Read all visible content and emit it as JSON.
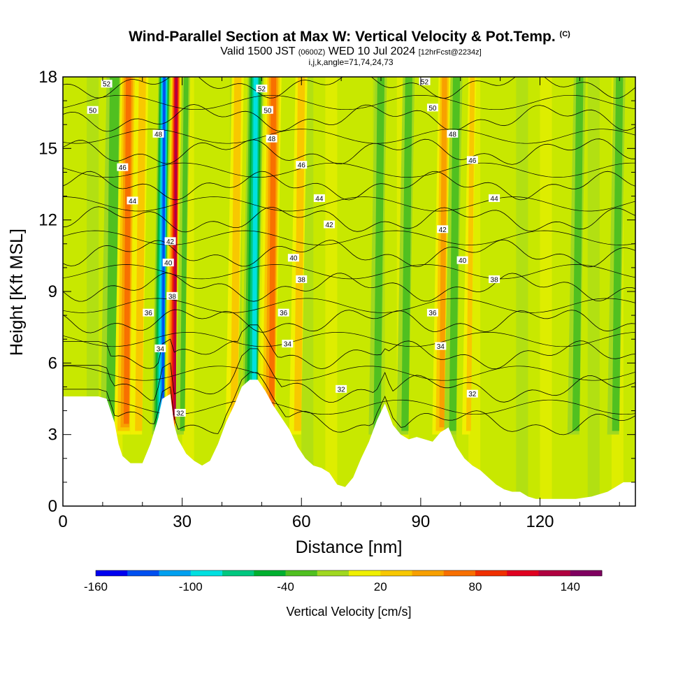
{
  "title": "Wind-Parallel Section at Max W: Vertical Velocity & Pot.Temp.",
  "title_mark": "(C)",
  "subtitle": {
    "valid_label": "Valid 1500 JST",
    "utc": "(0600Z)",
    "date": "WED 10 Jul 2024",
    "forecast": "[12hrFcst@2234z]"
  },
  "index_line": "i,j,k,angle=71,74,24,73",
  "chart_data": {
    "type": "heatmap",
    "xlabel": "Distance [nm]",
    "ylabel": "Height [Kft MSL]",
    "xlim": [
      0,
      144
    ],
    "ylim": [
      0,
      18
    ],
    "x_ticks": [
      0,
      30,
      60,
      90,
      120
    ],
    "y_ticks": [
      0,
      3,
      6,
      9,
      12,
      15,
      18
    ],
    "colorbar": {
      "label": "Vertical Velocity [cm/s]",
      "min": -160,
      "max": 160,
      "step": 20,
      "tick_labels": [
        "-160",
        "-100",
        "-40",
        "20",
        "80",
        "140"
      ],
      "tick_values": [
        -160,
        -100,
        -40,
        20,
        80,
        140
      ],
      "colors": [
        "#0000f0",
        "#0050f0",
        "#00a0f0",
        "#00e0e0",
        "#00c880",
        "#00b030",
        "#50c020",
        "#a0d820",
        "#c8e800",
        "#f0f000",
        "#f8c800",
        "#f8a000",
        "#f87000",
        "#f03000",
        "#e00020",
        "#b00040",
        "#800060"
      ]
    },
    "velocity_features": [
      {
        "x": 13,
        "width": 4,
        "w": -40
      },
      {
        "x": 16.5,
        "width": 4,
        "w": 90
      },
      {
        "x": 20,
        "width": 3,
        "w": 50
      },
      {
        "x": 25.5,
        "width": 3,
        "w": -150
      },
      {
        "x": 28.5,
        "width": 2.5,
        "w": 140
      },
      {
        "x": 31,
        "width": 2,
        "w": -40
      },
      {
        "x": 44,
        "width": 3,
        "w": 50
      },
      {
        "x": 48.5,
        "width": 4,
        "w": -110
      },
      {
        "x": 53,
        "width": 4,
        "w": 90
      },
      {
        "x": 60,
        "width": 3,
        "w": 40
      },
      {
        "x": 80,
        "width": 3,
        "w": -40
      },
      {
        "x": 87,
        "width": 3,
        "w": -40
      },
      {
        "x": 96,
        "width": 3,
        "w": 60
      },
      {
        "x": 99,
        "width": 3,
        "w": -40
      },
      {
        "x": 103,
        "width": 2,
        "w": 40
      },
      {
        "x": 130,
        "width": 3,
        "w": -40
      },
      {
        "x": 140,
        "width": 3,
        "w": -40
      }
    ],
    "terrain_kft": [
      [
        0,
        4.6
      ],
      [
        4,
        4.6
      ],
      [
        9,
        4.6
      ],
      [
        11,
        4.5
      ],
      [
        13,
        3.5
      ],
      [
        14,
        2.6
      ],
      [
        15,
        2.1
      ],
      [
        17,
        1.8
      ],
      [
        20,
        1.8
      ],
      [
        22,
        2.6
      ],
      [
        24,
        3.7
      ],
      [
        25,
        4.5
      ],
      [
        27,
        4.7
      ],
      [
        28,
        3.4
      ],
      [
        29,
        2.8
      ],
      [
        31,
        2.2
      ],
      [
        33,
        1.9
      ],
      [
        35,
        1.7
      ],
      [
        37,
        1.9
      ],
      [
        39,
        2.6
      ],
      [
        41,
        3.5
      ],
      [
        43,
        4.2
      ],
      [
        45,
        5.0
      ],
      [
        47,
        5.3
      ],
      [
        49,
        5.3
      ],
      [
        51,
        4.8
      ],
      [
        53,
        4.2
      ],
      [
        55,
        3.7
      ],
      [
        57,
        3.2
      ],
      [
        59,
        2.5
      ],
      [
        61,
        2.0
      ],
      [
        63,
        1.7
      ],
      [
        65,
        1.6
      ],
      [
        67,
        1.4
      ],
      [
        69,
        0.9
      ],
      [
        71,
        0.8
      ],
      [
        73,
        1.2
      ],
      [
        75,
        2.0
      ],
      [
        77,
        2.7
      ],
      [
        79,
        3.6
      ],
      [
        81,
        4.3
      ],
      [
        83,
        3.4
      ],
      [
        85,
        3.0
      ],
      [
        87,
        2.8
      ],
      [
        89,
        2.9
      ],
      [
        91,
        2.8
      ],
      [
        93,
        2.7
      ],
      [
        95,
        3.1
      ],
      [
        97,
        3.3
      ],
      [
        99,
        2.5
      ],
      [
        101,
        2.0
      ],
      [
        103,
        1.7
      ],
      [
        105,
        1.5
      ],
      [
        107,
        1.2
      ],
      [
        109,
        0.9
      ],
      [
        111,
        0.7
      ],
      [
        113,
        0.6
      ],
      [
        115,
        0.6
      ],
      [
        117,
        0.4
      ],
      [
        119,
        0.3
      ],
      [
        121,
        0.3
      ],
      [
        125,
        0.3
      ],
      [
        129,
        0.3
      ],
      [
        133,
        0.4
      ],
      [
        137,
        0.6
      ],
      [
        139,
        0.8
      ],
      [
        141,
        1.0
      ],
      [
        144,
        1.0
      ]
    ],
    "theta_levels": [
      32,
      34,
      36,
      38,
      40,
      42,
      44,
      46,
      48,
      50,
      52
    ],
    "theta_labels": [
      {
        "text": "52",
        "x": 11,
        "y": 17.7
      },
      {
        "text": "50",
        "x": 7.5,
        "y": 16.6
      },
      {
        "text": "48",
        "x": 24,
        "y": 15.6
      },
      {
        "text": "46",
        "x": 15,
        "y": 14.2
      },
      {
        "text": "44",
        "x": 17.5,
        "y": 12.8
      },
      {
        "text": "42",
        "x": 27,
        "y": 11.1
      },
      {
        "text": "40",
        "x": 26.5,
        "y": 10.2
      },
      {
        "text": "38",
        "x": 27.5,
        "y": 8.8
      },
      {
        "text": "36",
        "x": 21.5,
        "y": 8.1
      },
      {
        "text": "34",
        "x": 24.5,
        "y": 6.6
      },
      {
        "text": "32",
        "x": 29.5,
        "y": 3.9
      },
      {
        "text": "52",
        "x": 50,
        "y": 17.5
      },
      {
        "text": "50",
        "x": 51.5,
        "y": 16.6
      },
      {
        "text": "48",
        "x": 52.5,
        "y": 15.4
      },
      {
        "text": "46",
        "x": 60,
        "y": 14.3
      },
      {
        "text": "44",
        "x": 64.5,
        "y": 12.9
      },
      {
        "text": "42",
        "x": 67,
        "y": 11.8
      },
      {
        "text": "40",
        "x": 58,
        "y": 10.4
      },
      {
        "text": "38",
        "x": 60,
        "y": 9.5
      },
      {
        "text": "36",
        "x": 55.5,
        "y": 8.1
      },
      {
        "text": "34",
        "x": 56.5,
        "y": 6.8
      },
      {
        "text": "32",
        "x": 70,
        "y": 4.9
      },
      {
        "text": "52",
        "x": 91,
        "y": 17.8
      },
      {
        "text": "50",
        "x": 93,
        "y": 16.7
      },
      {
        "text": "48",
        "x": 98,
        "y": 15.6
      },
      {
        "text": "46",
        "x": 103,
        "y": 14.5
      },
      {
        "text": "44",
        "x": 108.5,
        "y": 12.9
      },
      {
        "text": "42",
        "x": 95.5,
        "y": 11.6
      },
      {
        "text": "40",
        "x": 100.5,
        "y": 10.3
      },
      {
        "text": "38",
        "x": 108.5,
        "y": 9.5
      },
      {
        "text": "36",
        "x": 93,
        "y": 8.1
      },
      {
        "text": "34",
        "x": 95,
        "y": 6.7
      },
      {
        "text": "32",
        "x": 103,
        "y": 4.7
      }
    ]
  }
}
